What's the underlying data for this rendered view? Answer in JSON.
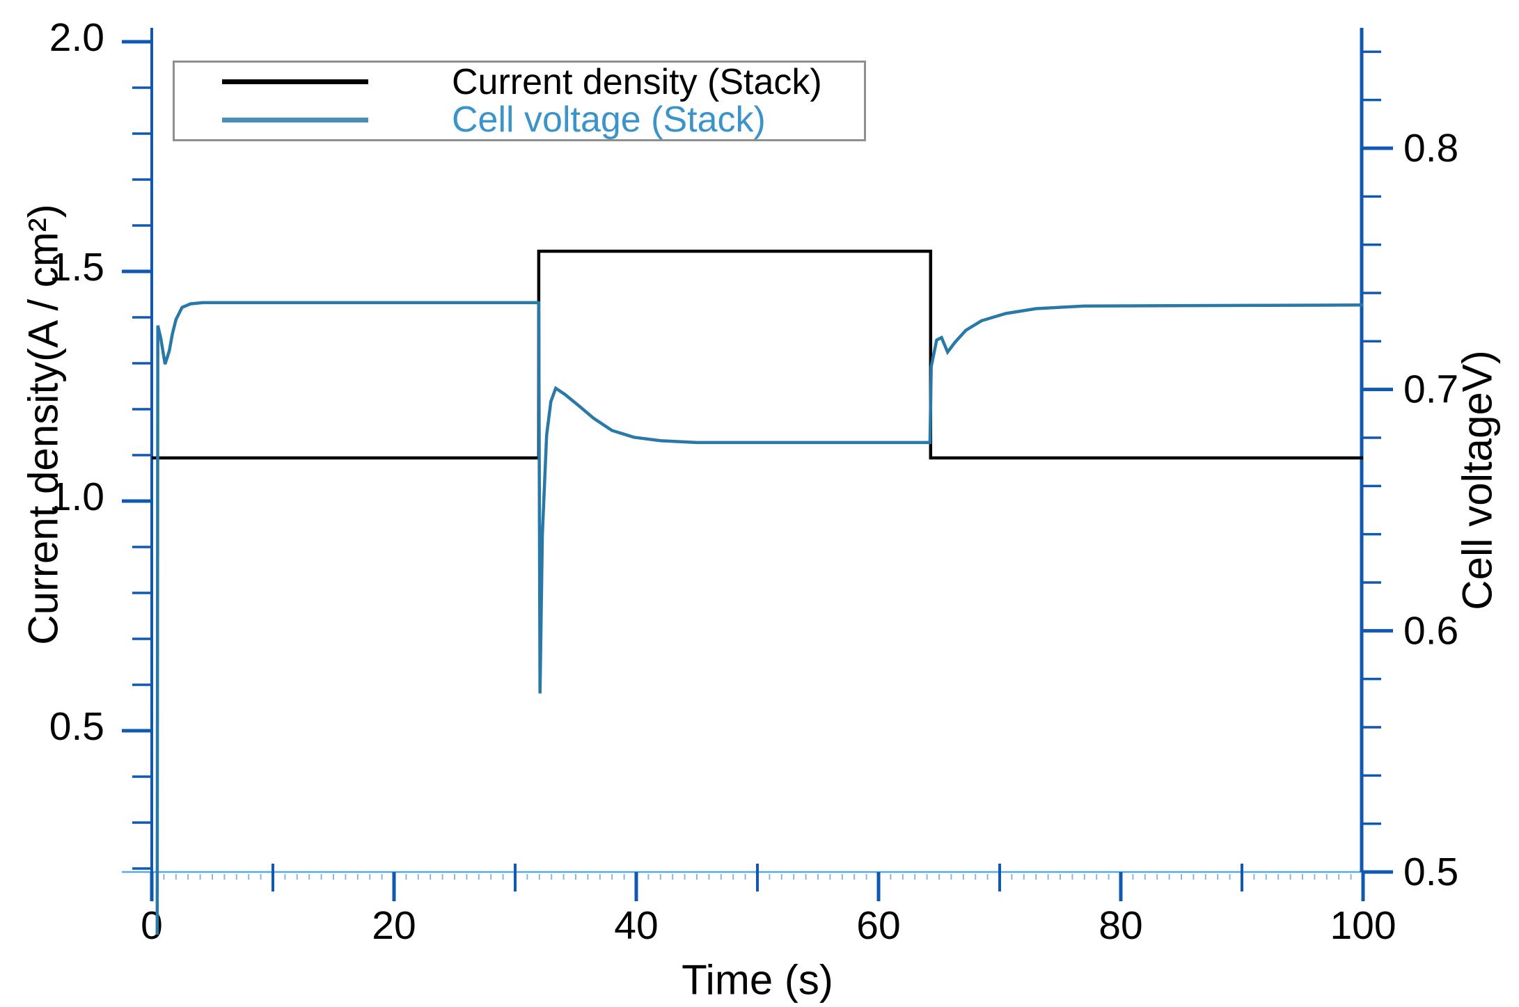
{
  "chart_data": {
    "type": "line",
    "title": "",
    "xlabel": "Time (s)",
    "ylabel_left": "Current density(A / cm²)",
    "ylabel_right": "Cell voltageV)",
    "x_axis": {
      "lim": [
        0,
        100
      ],
      "major_ticks": [
        0,
        20,
        40,
        60,
        80,
        100
      ],
      "major_labels": [
        "0",
        "20",
        "40",
        "60",
        "80",
        "100"
      ],
      "minor_ticks": [
        10,
        30,
        50,
        70,
        90
      ],
      "tiny_tick_step": 1
    },
    "left_axis": {
      "lim": [
        0.19,
        2.03
      ],
      "ticks": [
        {
          "v": 2.0,
          "label": "2.0"
        },
        {
          "v": 1.5,
          "label": "1.5"
        },
        {
          "v": 1.0,
          "label": "1.0"
        },
        {
          "v": 0.5,
          "label": "0.5"
        }
      ],
      "minor_step": 0.1
    },
    "right_axis": {
      "lim": [
        0.474,
        0.85
      ],
      "ticks": [
        {
          "v": 0.8,
          "label": "0.8"
        },
        {
          "v": 0.7,
          "label": "0.7"
        },
        {
          "v": 0.6,
          "label": "0.6"
        },
        {
          "v": 0.5,
          "label": "0.5"
        }
      ],
      "minor_step": 0.02
    },
    "series": [
      {
        "name": "Current density (Stack)",
        "axis": "left",
        "color": "#000000",
        "line_width": 4.5,
        "steady_low": 1.094,
        "steady_high": 1.544,
        "step_up_time": 31.95,
        "step_down_time": 64.3,
        "points": [
          [
            0,
            1.094
          ],
          [
            31.95,
            1.094
          ],
          [
            31.95,
            1.544
          ],
          [
            64.3,
            1.544
          ],
          [
            64.3,
            1.094
          ],
          [
            100,
            1.094
          ]
        ]
      },
      {
        "name": "Cell voltage (Stack)",
        "axis": "right",
        "color": "#2878a8",
        "line_width": 4.5,
        "steady_initial": 0.736,
        "steady_mid": 0.678,
        "undershoot_min": 0.574,
        "points": [
          [
            0.45,
            0.474
          ],
          [
            0.5,
            0.7265
          ],
          [
            0.75,
            0.721
          ],
          [
            1.1,
            0.7105
          ],
          [
            1.45,
            0.716
          ],
          [
            1.7,
            0.723
          ],
          [
            2.0,
            0.729
          ],
          [
            2.5,
            0.734
          ],
          [
            3.2,
            0.7355
          ],
          [
            4.2,
            0.736
          ],
          [
            31.95,
            0.736
          ],
          [
            32.05,
            0.574
          ],
          [
            32.25,
            0.64
          ],
          [
            32.6,
            0.681
          ],
          [
            32.95,
            0.695
          ],
          [
            33.35,
            0.7005
          ],
          [
            34.1,
            0.698
          ],
          [
            35.2,
            0.6935
          ],
          [
            36.5,
            0.688
          ],
          [
            38,
            0.683
          ],
          [
            39.8,
            0.6802
          ],
          [
            42,
            0.6788
          ],
          [
            45,
            0.678
          ],
          [
            64.25,
            0.678
          ],
          [
            64.35,
            0.7095
          ],
          [
            64.8,
            0.7205
          ],
          [
            65.2,
            0.7215
          ],
          [
            65.7,
            0.7155
          ],
          [
            66.3,
            0.7195
          ],
          [
            67.2,
            0.7245
          ],
          [
            68.5,
            0.7285
          ],
          [
            70.5,
            0.7315
          ],
          [
            73,
            0.7335
          ],
          [
            77,
            0.7346
          ],
          [
            100,
            0.735
          ]
        ]
      }
    ],
    "legend": {
      "position": "top-left",
      "entries": [
        {
          "label": "Current density (Stack)",
          "swatch_color": "#000000",
          "text_color": "#000000"
        },
        {
          "label": "Cell voltage (Stack)",
          "swatch_color": "#4a8fb5",
          "text_color": "#3a93c9"
        }
      ]
    },
    "colors": {
      "axis_blue": "#1159b0",
      "bottom_axis_blue": "#56aadd",
      "tiny_tick_blue": "#8ab8de",
      "tick_label": "#000000"
    }
  }
}
